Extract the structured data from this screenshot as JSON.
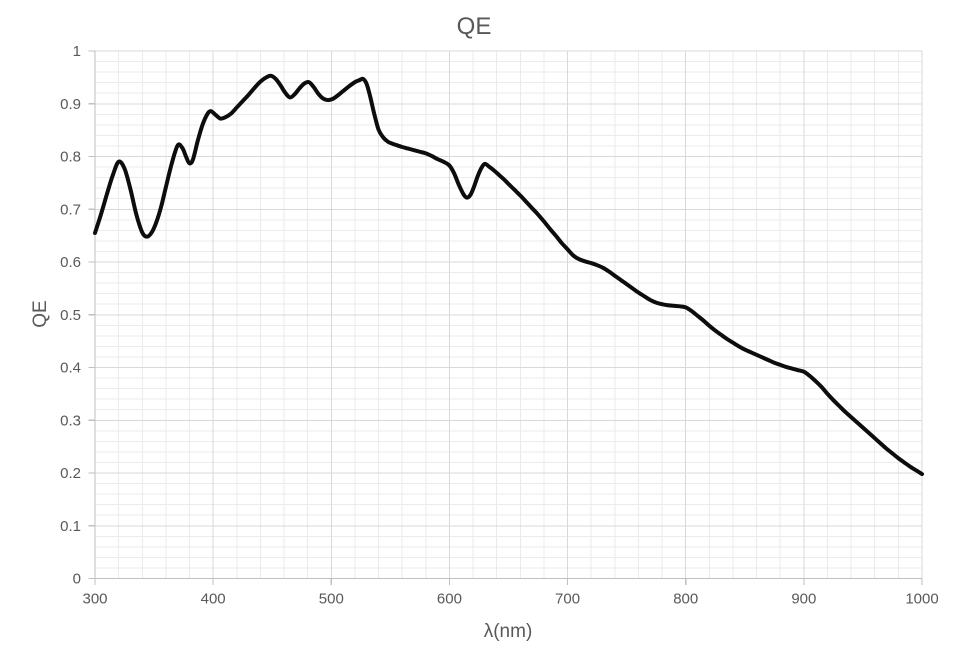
{
  "chart": {
    "title": "QE",
    "x_axis_label": "λ(nm)",
    "y_axis_label": "QE"
  },
  "colors": {
    "background": "#ffffff",
    "text": "#595959",
    "axis_line": "#bfbfbf",
    "grid_major": "#d9d9d9",
    "grid_minor": "#ebebeb",
    "curve": "#0d0d0d"
  },
  "chart_data": {
    "type": "line",
    "title": "QE",
    "xlabel": "λ(nm)",
    "ylabel": "QE",
    "xlim": [
      300,
      1000
    ],
    "ylim": [
      0,
      1
    ],
    "x_tick_labels": [
      "300",
      "400",
      "500",
      "600",
      "700",
      "800",
      "900",
      "1000"
    ],
    "x_tick_values": [
      300,
      400,
      500,
      600,
      700,
      800,
      900,
      1000
    ],
    "y_tick_labels": [
      "0",
      "0.1",
      "0.2",
      "0.3",
      "0.4",
      "0.5",
      "0.6",
      "0.7",
      "0.8",
      "0.9",
      "1"
    ],
    "y_tick_values": [
      0,
      0.1,
      0.2,
      0.3,
      0.4,
      0.5,
      0.6,
      0.7,
      0.8,
      0.9,
      1
    ],
    "x_minor_step": 20,
    "y_minor_step": 0.02,
    "grid": "major-and-minor",
    "legend": "none",
    "series": [
      {
        "name": "QE",
        "x": [
          300,
          305,
          310,
          315,
          320,
          325,
          330,
          335,
          340,
          344,
          348,
          352,
          356,
          360,
          365,
          370,
          374,
          377,
          380,
          383,
          387,
          391,
          395,
          398,
          402,
          406,
          410,
          415,
          420,
          425,
          430,
          435,
          440,
          445,
          449,
          453,
          457,
          461,
          465,
          469,
          473,
          477,
          481,
          485,
          489,
          493,
          497,
          501,
          505,
          510,
          515,
          520,
          524,
          527,
          530,
          533,
          536,
          540,
          544,
          548,
          552,
          556,
          560,
          565,
          570,
          575,
          580,
          585,
          590,
          595,
          600,
          604,
          608,
          612,
          615,
          618,
          621,
          624,
          627,
          630,
          634,
          638,
          642,
          646,
          650,
          655,
          660,
          665,
          670,
          675,
          680,
          685,
          690,
          695,
          700,
          705,
          710,
          715,
          720,
          725,
          730,
          735,
          740,
          745,
          750,
          755,
          760,
          765,
          770,
          775,
          780,
          785,
          790,
          795,
          800,
          805,
          810,
          815,
          820,
          825,
          830,
          835,
          840,
          845,
          850,
          855,
          860,
          865,
          870,
          875,
          880,
          885,
          890,
          895,
          900,
          905,
          910,
          915,
          920,
          925,
          930,
          935,
          940,
          945,
          950,
          955,
          960,
          965,
          970,
          975,
          980,
          985,
          990,
          995,
          1000
        ],
        "y": [
          0.655,
          0.69,
          0.728,
          0.764,
          0.79,
          0.777,
          0.738,
          0.69,
          0.656,
          0.648,
          0.656,
          0.676,
          0.705,
          0.742,
          0.787,
          0.821,
          0.816,
          0.8,
          0.787,
          0.795,
          0.83,
          0.86,
          0.88,
          0.886,
          0.879,
          0.872,
          0.874,
          0.881,
          0.893,
          0.905,
          0.917,
          0.93,
          0.942,
          0.95,
          0.953,
          0.947,
          0.935,
          0.921,
          0.912,
          0.918,
          0.929,
          0.938,
          0.941,
          0.932,
          0.919,
          0.91,
          0.907,
          0.909,
          0.915,
          0.924,
          0.933,
          0.941,
          0.945,
          0.947,
          0.937,
          0.913,
          0.884,
          0.851,
          0.836,
          0.828,
          0.824,
          0.821,
          0.818,
          0.815,
          0.812,
          0.809,
          0.806,
          0.801,
          0.795,
          0.79,
          0.783,
          0.768,
          0.746,
          0.728,
          0.722,
          0.728,
          0.744,
          0.763,
          0.778,
          0.786,
          0.78,
          0.773,
          0.765,
          0.757,
          0.748,
          0.737,
          0.726,
          0.714,
          0.702,
          0.69,
          0.677,
          0.663,
          0.65,
          0.636,
          0.624,
          0.612,
          0.605,
          0.601,
          0.598,
          0.594,
          0.589,
          0.582,
          0.574,
          0.566,
          0.558,
          0.55,
          0.542,
          0.535,
          0.528,
          0.523,
          0.52,
          0.518,
          0.517,
          0.516,
          0.514,
          0.507,
          0.498,
          0.489,
          0.479,
          0.47,
          0.462,
          0.454,
          0.447,
          0.44,
          0.434,
          0.429,
          0.424,
          0.419,
          0.414,
          0.409,
          0.405,
          0.401,
          0.398,
          0.395,
          0.392,
          0.384,
          0.374,
          0.363,
          0.35,
          0.338,
          0.327,
          0.316,
          0.306,
          0.296,
          0.286,
          0.276,
          0.266,
          0.256,
          0.246,
          0.237,
          0.228,
          0.22,
          0.212,
          0.205,
          0.198
        ]
      }
    ]
  }
}
